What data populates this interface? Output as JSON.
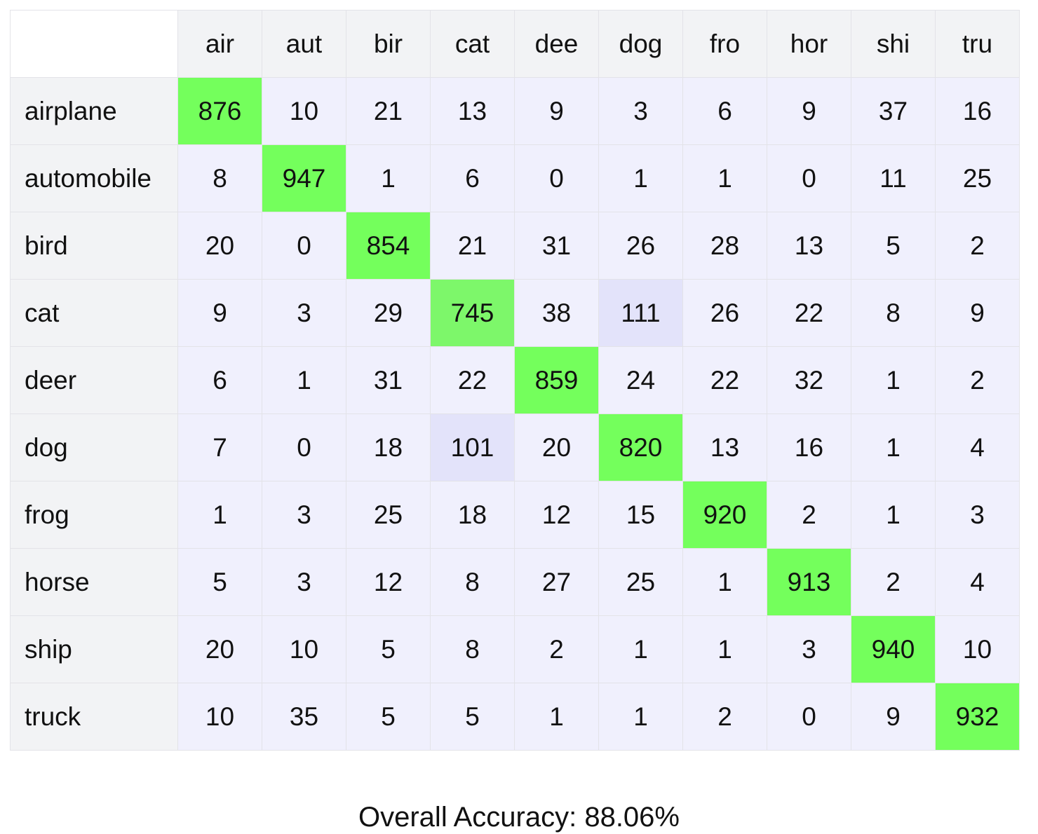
{
  "chart_data": {
    "type": "heatmap",
    "title": "",
    "col_labels": [
      "air",
      "aut",
      "bir",
      "cat",
      "dee",
      "dog",
      "fro",
      "hor",
      "shi",
      "tru"
    ],
    "row_labels": [
      "airplane",
      "automobile",
      "bird",
      "cat",
      "deer",
      "dog",
      "frog",
      "horse",
      "ship",
      "truck"
    ],
    "values": [
      [
        876,
        10,
        21,
        13,
        9,
        3,
        6,
        9,
        37,
        16
      ],
      [
        8,
        947,
        1,
        6,
        0,
        1,
        1,
        0,
        11,
        25
      ],
      [
        20,
        0,
        854,
        21,
        31,
        26,
        28,
        13,
        5,
        2
      ],
      [
        9,
        3,
        29,
        745,
        38,
        111,
        26,
        22,
        8,
        9
      ],
      [
        6,
        1,
        31,
        22,
        859,
        24,
        22,
        32,
        1,
        2
      ],
      [
        7,
        0,
        18,
        101,
        20,
        820,
        13,
        16,
        1,
        4
      ],
      [
        1,
        3,
        25,
        18,
        12,
        15,
        920,
        2,
        1,
        3
      ],
      [
        5,
        3,
        12,
        8,
        27,
        25,
        1,
        913,
        2,
        4
      ],
      [
        20,
        10,
        5,
        8,
        2,
        1,
        1,
        3,
        940,
        10
      ],
      [
        10,
        35,
        5,
        5,
        1,
        1,
        2,
        0,
        9,
        932
      ]
    ],
    "colors": {
      "correct_high": "#74ff5c",
      "correct_low": "#7df76a",
      "off_diagonal": "#f0f0fd",
      "off_diagonal_high": "#e3e3fa",
      "header_bg": "#f2f3f5"
    },
    "footer": "Overall Accuracy: 88.06%"
  }
}
